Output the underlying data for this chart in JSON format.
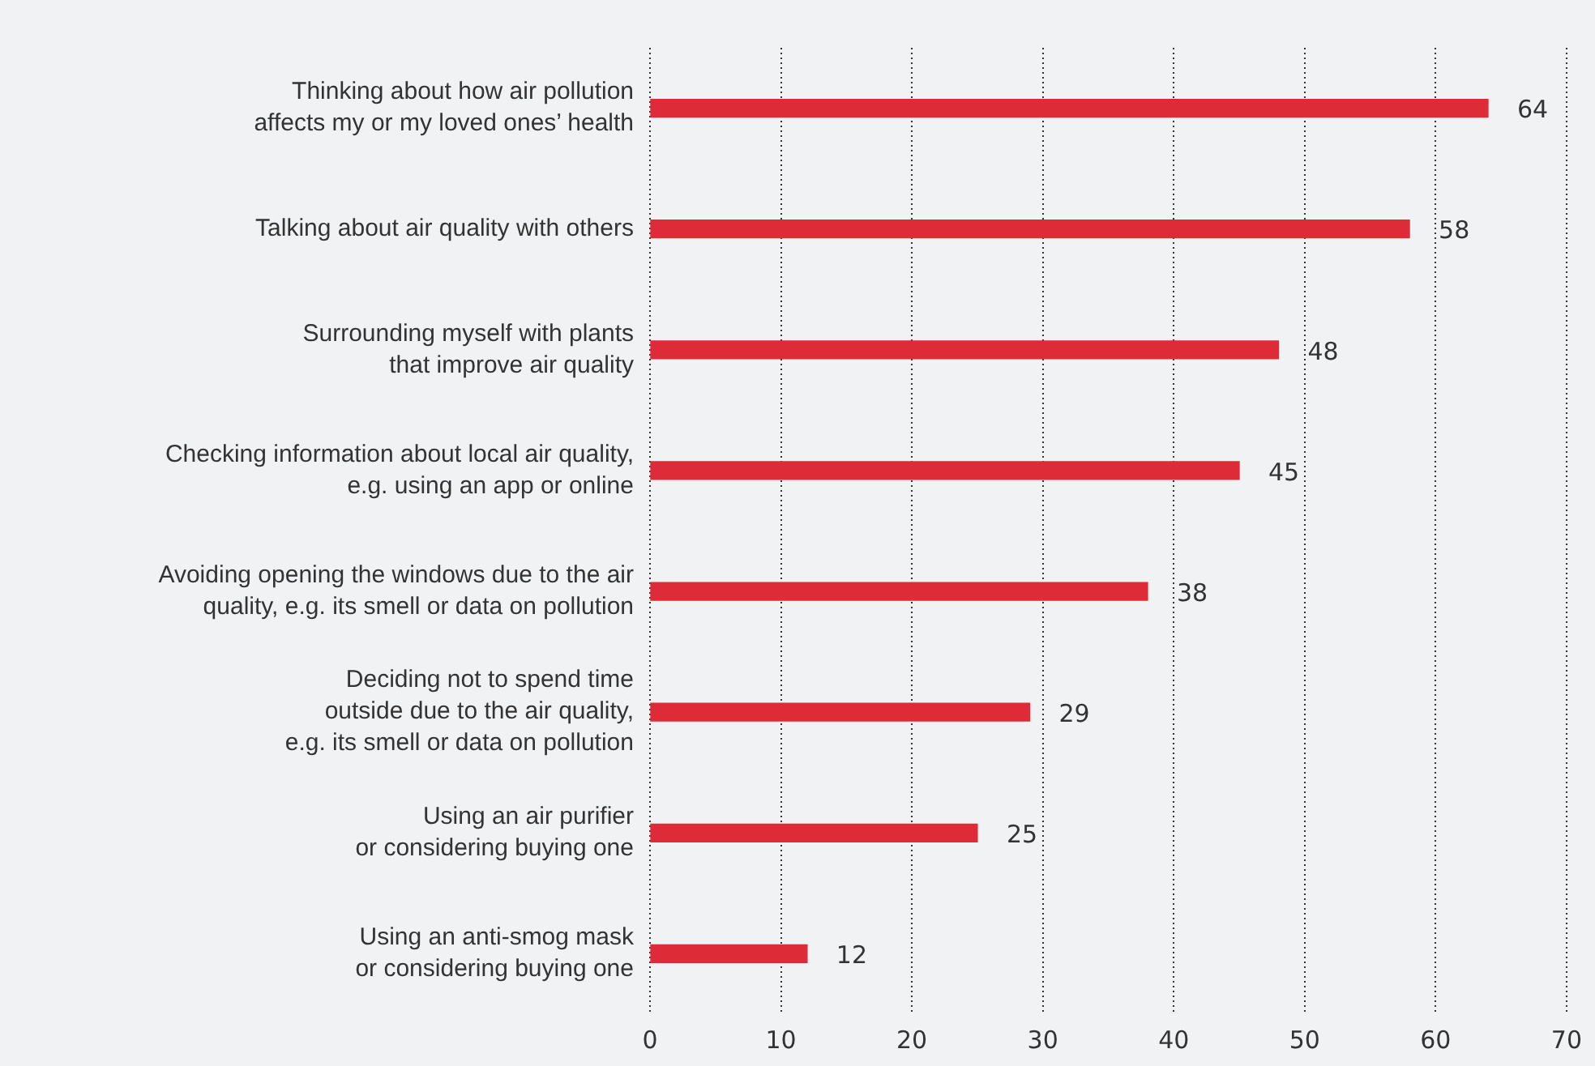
{
  "chart_data": {
    "type": "bar",
    "orientation": "horizontal",
    "categories": [
      "Thinking about how air pollution\naffects my or my loved ones’ health",
      "Talking about air quality with others",
      "Surrounding myself with plants\nthat improve air quality",
      "Checking information about local air quality,\ne.g. using an app or online",
      "Avoiding opening the windows due to the air\nquality, e.g. its smell or data on pollution",
      "Deciding not to spend time\noutside due to the air quality,\ne.g. its smell or data on pollution",
      "Using an air purifier\nor considering buying one",
      "Using an anti-smog mask\nor considering buying one"
    ],
    "values": [
      64,
      58,
      48,
      45,
      38,
      29,
      25,
      12
    ],
    "color": "#de2b38",
    "xlim": [
      0,
      70
    ],
    "xticks": [
      0,
      10,
      20,
      30,
      40,
      50,
      60,
      70
    ],
    "grid": "x",
    "line_style": "dotted",
    "data_labels": true,
    "legend": false
  }
}
